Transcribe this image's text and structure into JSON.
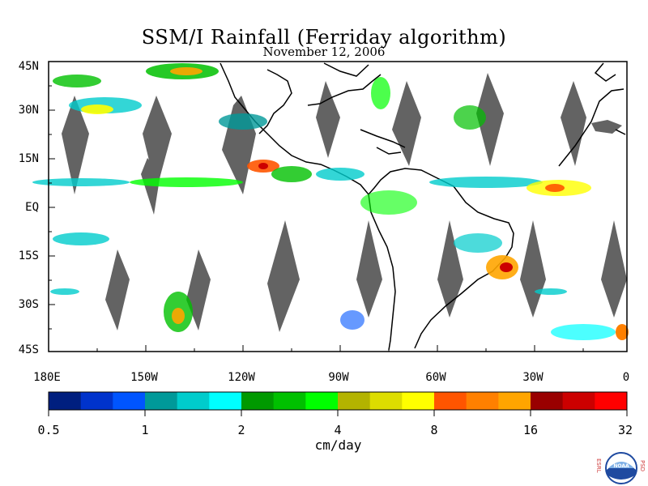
{
  "title": "SSM/I Rainfall (Ferriday algorithm)",
  "date": "November 12, 2006",
  "lat_labels": [
    "45N",
    "30N",
    "15N",
    "EQ",
    "15S",
    "30S",
    "45S"
  ],
  "lon_labels": [
    "180E",
    "150W",
    "120W",
    "90W",
    "60W",
    "30W",
    "0"
  ],
  "colorbar": {
    "colors": [
      "#001f7f",
      "#0033cc",
      "#0055ff",
      "#009999",
      "#00cccc",
      "#00ffff",
      "#009900",
      "#00c000",
      "#00ff00",
      "#b3b300",
      "#dddd00",
      "#ffff00",
      "#ff5500",
      "#ff8000",
      "#ffa500",
      "#990000",
      "#cc0000",
      "#ff0000"
    ],
    "tick_labels": [
      "0.5",
      "1",
      "2",
      "4",
      "8",
      "16",
      "32"
    ],
    "unit": "cm/day"
  },
  "logo": {
    "text": "NOAA",
    "left_letters": "ESRL",
    "right_letters": "PSD"
  }
}
